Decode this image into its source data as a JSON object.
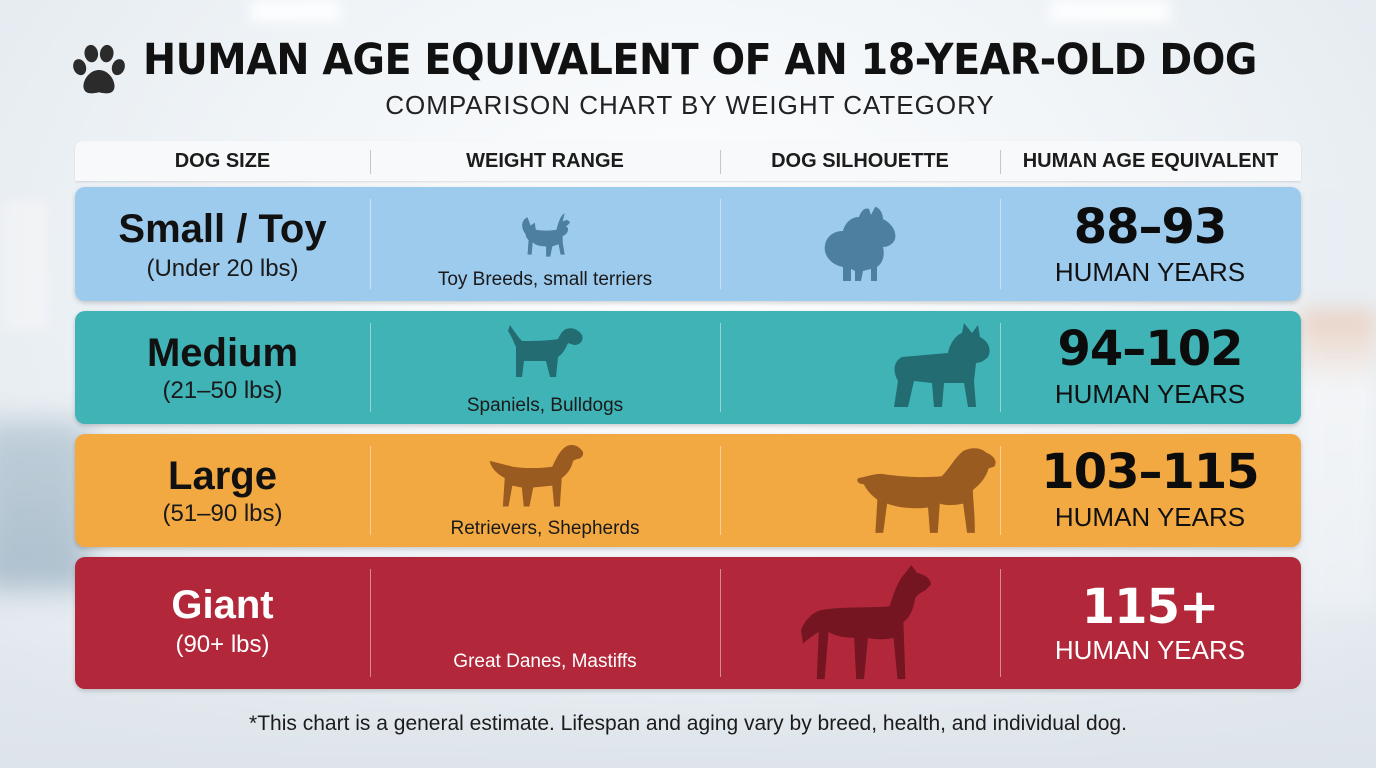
{
  "title": "HUMAN AGE EQUIVALENT OF AN 18-YEAR-OLD DOG",
  "subtitle": "COMPARISON CHART BY WEIGHT CATEGORY",
  "icons": {
    "title": "paw-icon"
  },
  "columns": [
    "DOG SIZE",
    "WEIGHT RANGE",
    "DOG SILHOUETTE",
    "HUMAN AGE EQUIVALENT"
  ],
  "rows": [
    {
      "size": "Small / Toy",
      "range": "(Under 20 lbs)",
      "breeds": "Toy Breeds, small terriers",
      "age": "88–93",
      "unit": "HUMAN YEARS",
      "color": "#9dcbee",
      "icons": [
        "chihuahua-silhouette-icon",
        "pomeranian-silhouette-icon"
      ]
    },
    {
      "size": "Medium",
      "range": "(21–50 lbs)",
      "breeds": "Spaniels, Bulldogs",
      "age": "94–102",
      "unit": "HUMAN YEARS",
      "color": "#3fb3b6",
      "icons": [
        "beagle-silhouette-icon",
        "bulldog-silhouette-icon"
      ]
    },
    {
      "size": "Large",
      "range": "(51–90 lbs)",
      "breeds": "Retrievers, Shepherds",
      "age": "103–115",
      "unit": "HUMAN YEARS",
      "color": "#f3a942",
      "icons": [
        "retriever-silhouette-icon",
        "golden-retriever-silhouette-icon"
      ]
    },
    {
      "size": "Giant",
      "range": "(90+ lbs)",
      "breeds": "Great Danes, Mastiffs",
      "age": "115+",
      "unit": "HUMAN YEARS",
      "color": "#b2283a",
      "icons": [
        "great-dane-silhouette-icon"
      ]
    }
  ],
  "footnote": "*This chart is a general estimate. Lifespan and aging vary by breed, health, and individual dog.",
  "chart_data": {
    "type": "table",
    "title": "HUMAN AGE EQUIVALENT OF AN 18-YEAR-OLD DOG",
    "subtitle": "COMPARISON CHART BY WEIGHT CATEGORY",
    "columns": [
      "DOG SIZE",
      "WEIGHT RANGE",
      "DOG SILHOUETTE",
      "HUMAN AGE EQUIVALENT"
    ],
    "rows": [
      [
        "Small / Toy (Under 20 lbs)",
        "Toy Breeds, small terriers",
        "",
        "88–93 HUMAN YEARS"
      ],
      [
        "Medium (21–50 lbs)",
        "Spaniels, Bulldogs",
        "",
        "94–102 HUMAN YEARS"
      ],
      [
        "Large (51–90 lbs)",
        "Retrievers, Shepherds",
        "",
        "103–115 HUMAN YEARS"
      ],
      [
        "Giant (90+ lbs)",
        "Great Danes, Mastiffs",
        "",
        "115+ HUMAN YEARS"
      ]
    ],
    "human_age_ranges": [
      {
        "category": "Small / Toy",
        "min": 88,
        "max": 93
      },
      {
        "category": "Medium",
        "min": 94,
        "max": 102
      },
      {
        "category": "Large",
        "min": 103,
        "max": 115
      },
      {
        "category": "Giant",
        "min": 115,
        "max": null
      }
    ]
  }
}
